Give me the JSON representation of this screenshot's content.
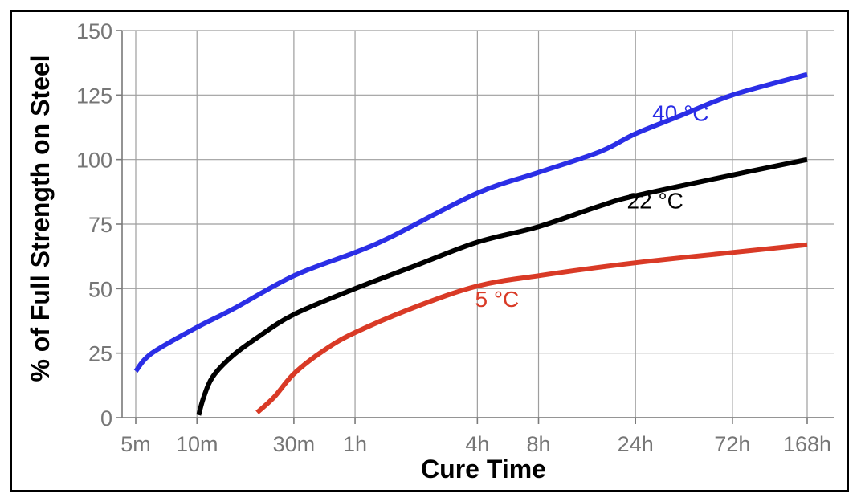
{
  "chart_data": {
    "type": "line",
    "title": "",
    "xlabel": "Cure Time",
    "ylabel": "% of Full Strength on Steel",
    "x_scale": "log",
    "x_unit": "hours",
    "xlim": [
      0.083,
      168
    ],
    "ylim": [
      0,
      150
    ],
    "grid": true,
    "x_ticks": [
      {
        "value": 0.0833,
        "label": "5m"
      },
      {
        "value": 0.1667,
        "label": "10m"
      },
      {
        "value": 0.5,
        "label": "30m"
      },
      {
        "value": 1,
        "label": "1h"
      },
      {
        "value": 4,
        "label": "4h"
      },
      {
        "value": 8,
        "label": "8h"
      },
      {
        "value": 24,
        "label": "24h"
      },
      {
        "value": 72,
        "label": "72h"
      },
      {
        "value": 168,
        "label": "168h"
      }
    ],
    "y_ticks": [
      {
        "value": 0,
        "label": "0"
      },
      {
        "value": 25,
        "label": "25"
      },
      {
        "value": 50,
        "label": "50"
      },
      {
        "value": 75,
        "label": "75"
      },
      {
        "value": 100,
        "label": "100"
      },
      {
        "value": 125,
        "label": "125"
      },
      {
        "value": 150,
        "label": "150"
      }
    ],
    "series": [
      {
        "name": "40 °C",
        "color": "#2b2ee6",
        "label_at": [
          40,
          115
        ],
        "points": [
          [
            0.0833,
            18
          ],
          [
            0.1,
            25
          ],
          [
            0.1667,
            35
          ],
          [
            0.25,
            42
          ],
          [
            0.5,
            55
          ],
          [
            1,
            64
          ],
          [
            1.5,
            70
          ],
          [
            4,
            87
          ],
          [
            8,
            95
          ],
          [
            16,
            103
          ],
          [
            24,
            110
          ],
          [
            40,
            117
          ],
          [
            72,
            125
          ],
          [
            168,
            133
          ]
        ]
      },
      {
        "name": "22 °C",
        "color": "#000000",
        "label_at": [
          30,
          81
        ],
        "points": [
          [
            0.17,
            1
          ],
          [
            0.18,
            8
          ],
          [
            0.2,
            16
          ],
          [
            0.25,
            24
          ],
          [
            0.33,
            31
          ],
          [
            0.5,
            40
          ],
          [
            1,
            50
          ],
          [
            2,
            59
          ],
          [
            4,
            68
          ],
          [
            8,
            74
          ],
          [
            16,
            82
          ],
          [
            24,
            86
          ],
          [
            72,
            94
          ],
          [
            168,
            100
          ]
        ]
      },
      {
        "name": "5 °C",
        "color": "#d93a26",
        "label_at": [
          5,
          43
        ],
        "points": [
          [
            0.33,
            2
          ],
          [
            0.4,
            8
          ],
          [
            0.5,
            17
          ],
          [
            0.7,
            26
          ],
          [
            1,
            33
          ],
          [
            2,
            43
          ],
          [
            4,
            51
          ],
          [
            8,
            55
          ],
          [
            24,
            60
          ],
          [
            72,
            64
          ],
          [
            168,
            67
          ]
        ]
      }
    ]
  }
}
